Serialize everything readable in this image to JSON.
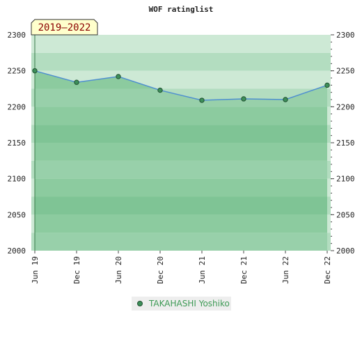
{
  "chart_data": {
    "type": "line",
    "title": "WOF ratinglist",
    "badge": "2019–2022",
    "categories": [
      "Jun 19",
      "Dec 19",
      "Jun 20",
      "Dec 20",
      "Jun 21",
      "Dec 21",
      "Jun 22",
      "Dec 22"
    ],
    "series": [
      {
        "name": "TAKAHASHI Yoshiko",
        "values": [
          2250,
          2234,
          2242,
          2223,
          2209,
          2211,
          2210,
          2230
        ]
      }
    ],
    "ylim": [
      2000,
      2300
    ],
    "yticks": [
      2000,
      2050,
      2100,
      2150,
      2200,
      2250,
      2300
    ],
    "grid": true,
    "legend": "bottom-center",
    "colors": {
      "line": "#4f8fd0",
      "marker": "#3d8f5a",
      "marker_edge": "#1f4f2f",
      "area": "#86c596",
      "legend_text": "#3d9a55",
      "badge_bg": "#ffffcc",
      "badge_text": "#8b0000"
    }
  }
}
